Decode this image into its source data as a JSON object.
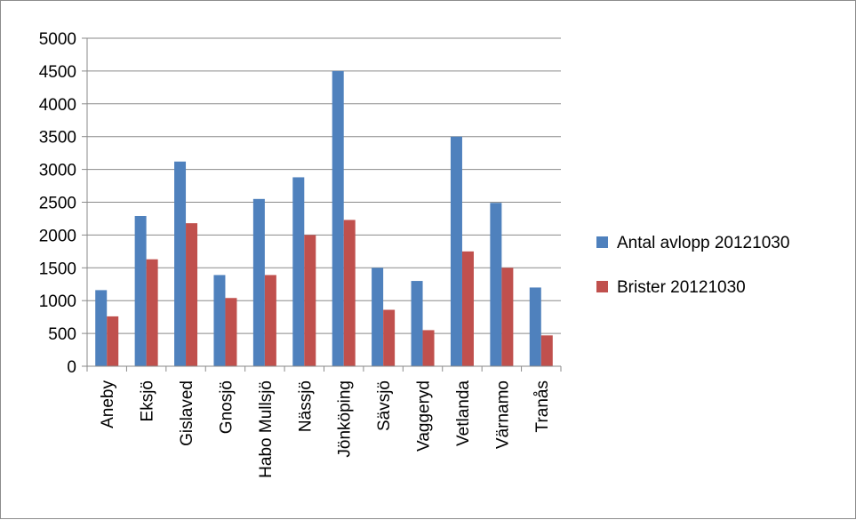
{
  "chart_data": {
    "type": "bar",
    "categories": [
      "Aneby",
      "Eksjö",
      "Gislaved",
      "Gnosjö",
      "Habo Mullsjö",
      "Nässjö",
      "Jönköping",
      "Sävsjö",
      "Vaggeryd",
      "Vetlanda",
      "Värnamo",
      "Tranås"
    ],
    "series": [
      {
        "name": "Antal avlopp 20121030",
        "color": "#4f81bd",
        "values": [
          1160,
          2290,
          3120,
          1390,
          2550,
          2880,
          4500,
          1500,
          1300,
          3500,
          2490,
          1200
        ]
      },
      {
        "name": "Brister 20121030",
        "color": "#c0504d",
        "values": [
          760,
          1630,
          2180,
          1040,
          1390,
          2000,
          2230,
          860,
          550,
          1750,
          1500,
          470
        ]
      }
    ],
    "ylim": [
      0,
      5000
    ],
    "yticks": [
      "0",
      "500",
      "1000",
      "1500",
      "2000",
      "2500",
      "3000",
      "3500",
      "4000",
      "4500",
      "5000"
    ],
    "grid": true,
    "legend_position": "right"
  }
}
